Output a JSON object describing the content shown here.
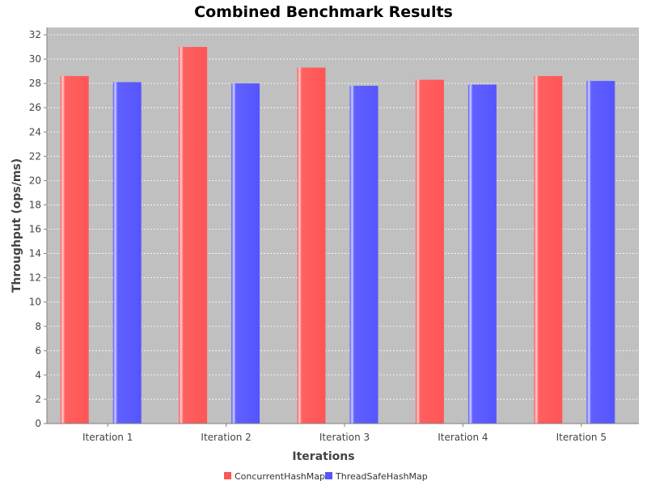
{
  "chart_data": {
    "type": "bar",
    "title": "Combined Benchmark Results",
    "xlabel": "Iterations",
    "ylabel": "Throughput (ops/ms)",
    "categories": [
      "Iteration 1",
      "Iteration 2",
      "Iteration 3",
      "Iteration 4",
      "Iteration 5"
    ],
    "series": [
      {
        "name": "ConcurrentHashMap",
        "color": "#ff5555",
        "values": [
          28.6,
          31.0,
          29.3,
          28.3,
          28.6
        ]
      },
      {
        "name": "ThreadSafeHashMap",
        "color": "#5555ff",
        "values": [
          28.1,
          28.0,
          27.8,
          27.9,
          28.2
        ]
      }
    ],
    "ylim": [
      0,
      32.6
    ],
    "yticks": [
      0,
      2,
      4,
      6,
      8,
      10,
      12,
      14,
      16,
      18,
      20,
      22,
      24,
      26,
      28,
      30,
      32
    ],
    "grid": true,
    "plot_background": "#c0c0c0",
    "legend_position": "bottom"
  }
}
